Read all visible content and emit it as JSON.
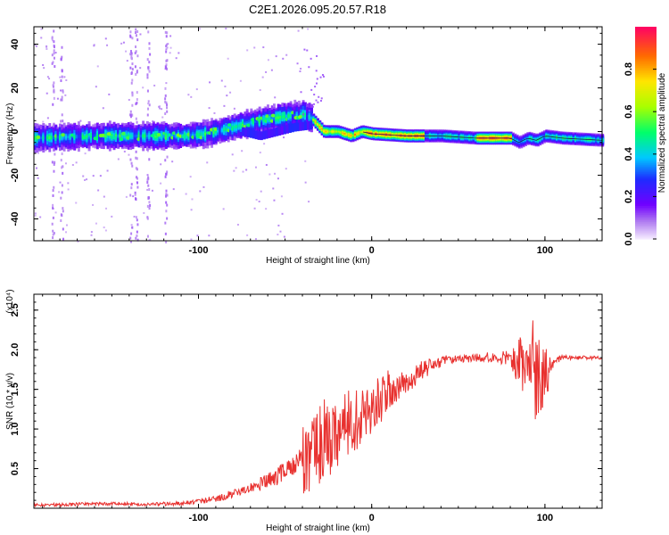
{
  "title": "C2E1.2026.095.20.57.R18",
  "colors": {
    "snr_line": "#e8312f",
    "frame": "#000000"
  },
  "chart_data": [
    {
      "type": "heatmap",
      "xlabel": "Height of straight line (km)",
      "ylabel": "Frequency (Hz)",
      "xlim": [
        -195,
        133
      ],
      "ylim": [
        -50,
        48
      ],
      "xticks": [
        -100,
        0,
        100
      ],
      "xtick_labels": [
        "-100",
        "0",
        "100"
      ],
      "yticks": [
        40,
        20,
        0,
        -20,
        -40
      ],
      "ytick_labels": [
        "40",
        "20",
        "0",
        "-20",
        "-40"
      ],
      "colorbar": {
        "label": "Normalized spectral amplitude",
        "range": [
          0,
          1
        ],
        "ticks": [
          0.0,
          0.2,
          0.4,
          0.6,
          0.8
        ],
        "tick_labels": [
          "0.0",
          "0.2",
          "0.4",
          "0.6",
          "0.8"
        ]
      },
      "ridge": {
        "x": [
          -195,
          -160,
          -130,
          -110,
          -95,
          -80,
          -65,
          -50,
          -40,
          -35,
          -28,
          -20,
          -12,
          -6,
          0,
          20,
          40,
          60,
          80,
          85,
          90,
          95,
          100,
          110,
          133
        ],
        "y": [
          -3,
          -2,
          -2,
          -2,
          -1,
          2,
          5,
          7,
          8,
          6,
          0,
          0,
          -2,
          0,
          -1,
          -2,
          -2,
          -3,
          -3,
          -5,
          -3,
          -4,
          -2,
          -3,
          -4
        ]
      },
      "secondary_ridge": {
        "x": [
          -75,
          -65,
          -55,
          -45,
          -35
        ],
        "y": [
          0,
          -2,
          0,
          2,
          3
        ]
      }
    },
    {
      "type": "line",
      "xlabel": "Height of straight line (km)",
      "ylabel": "SNR (10 * v/v)",
      "y_multiplier": "(x10⁴)",
      "xlim": [
        -195,
        133
      ],
      "ylim": [
        0,
        2.7
      ],
      "xticks": [
        -100,
        0,
        100
      ],
      "xtick_labels": [
        "-100",
        "0",
        "100"
      ],
      "yticks": [
        0.5,
        1.0,
        1.5,
        2.0,
        2.5
      ],
      "ytick_labels": [
        "0.5",
        "1.0",
        "1.5",
        "2.0",
        "2.5"
      ],
      "series": [
        {
          "envelope": {
            "x": [
              -195,
              -150,
              -130,
              -110,
              -90,
              -75,
              -60,
              -50,
              -40,
              -30,
              -20,
              -10,
              0,
              10,
              20,
              30,
              40,
              60,
              80,
              85,
              95,
              100,
              105,
              110,
              133
            ],
            "y": [
              0.03,
              0.05,
              0.04,
              0.05,
              0.1,
              0.2,
              0.3,
              0.4,
              0.6,
              0.8,
              1.0,
              1.1,
              1.3,
              1.45,
              1.6,
              1.75,
              1.85,
              1.9,
              1.9,
              1.85,
              1.8,
              1.75,
              1.85,
              1.9,
              1.9
            ]
          },
          "noise": {
            "x": [
              -195,
              -110,
              -70,
              -50,
              -30,
              -10,
              10,
              30,
              50,
              70,
              80,
              88,
              95,
              100,
              105,
              110,
              133
            ],
            "y": [
              0.04,
              0.05,
              0.12,
              0.3,
              0.55,
              0.4,
              0.3,
              0.12,
              0.05,
              0.07,
              0.1,
              0.45,
              0.7,
              0.5,
              0.05,
              0.03,
              0.02
            ]
          }
        }
      ]
    }
  ]
}
